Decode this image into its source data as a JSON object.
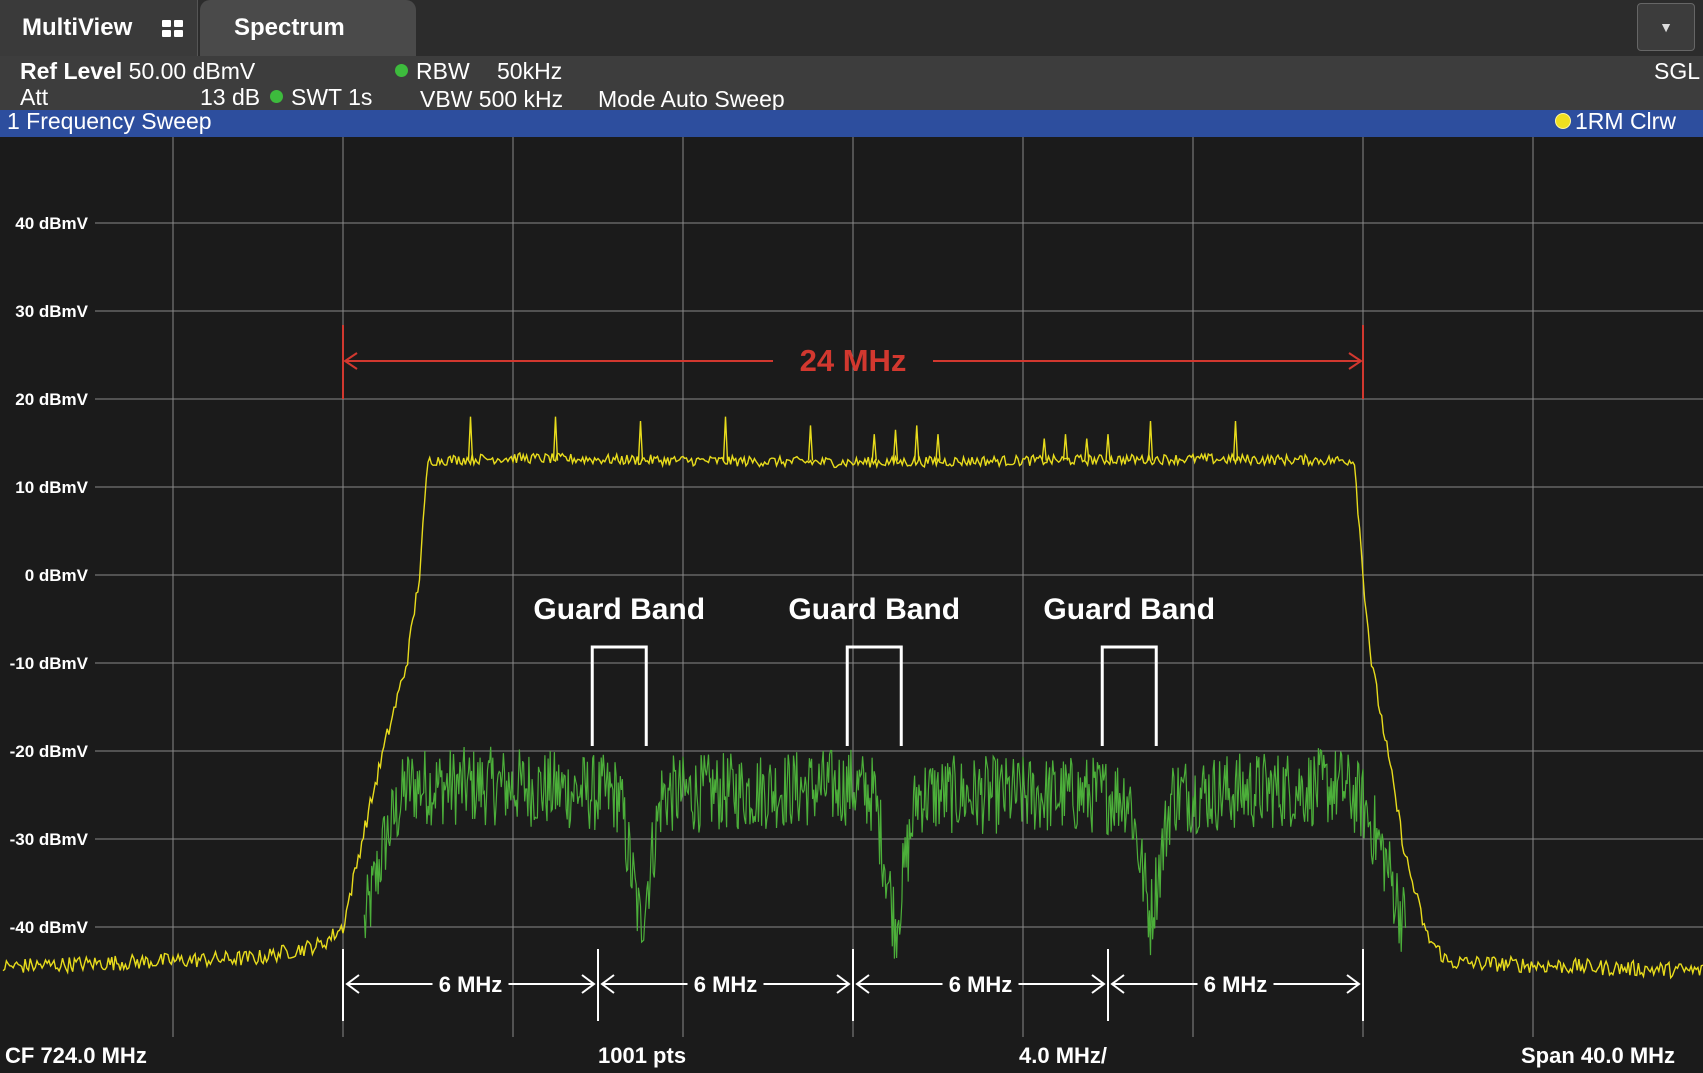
{
  "tabs": {
    "multiview": "MultiView",
    "spectrum": "Spectrum"
  },
  "info": {
    "ref_level_label": "Ref Level",
    "ref_level_value": "50.00 dBmV",
    "att_label": "Att",
    "att_value": "13 dB",
    "swt": "SWT 1s",
    "rbw_label": "RBW",
    "rbw_value": "50kHz",
    "vbw": "VBW 500 kHz",
    "mode": "Mode Auto Sweep",
    "sgl": "SGL"
  },
  "window": {
    "title": "1 Frequency Sweep",
    "trace_label": "1RM Clrw"
  },
  "footer": {
    "cf": "CF 724.0 MHz",
    "pts": "1001 pts",
    "div": "4.0 MHz/",
    "span": "Span 40.0 MHz"
  },
  "colors": {
    "trace_yellow": "#e8dc1c",
    "trace_green": "#4caf3a",
    "annotation_red": "#d2382f",
    "title_bar_blue": "#2d4e9e"
  },
  "chart_data": {
    "type": "line",
    "x_unit": "MHz",
    "x_range": [
      704,
      744
    ],
    "y_unit": "dBmV",
    "ylim": [
      -47,
      50
    ],
    "y_tick_labels": [
      "40 dBmV",
      "30 dBmV",
      "20 dBmV",
      "10 dBmV",
      "0 dBmV",
      "-10 dBmV",
      "-20 dBmV",
      "-30 dBmV",
      "-40 dBmV"
    ],
    "y_ticks": [
      40,
      30,
      20,
      10,
      0,
      -10,
      -20,
      -30,
      -40
    ],
    "grid": true,
    "series": [
      {
        "color": "#e8dc1c",
        "points": [
          [
            704,
            -44.5
          ],
          [
            710,
            -43.5
          ],
          [
            711.5,
            -42
          ],
          [
            712,
            -40
          ],
          [
            712.5,
            -29
          ],
          [
            713,
            -19
          ],
          [
            713.5,
            -10
          ],
          [
            713.8,
            0
          ],
          [
            714,
            13
          ],
          [
            716,
            13.3
          ],
          [
            720,
            13
          ],
          [
            724,
            12.8
          ],
          [
            728,
            13
          ],
          [
            732,
            13.2
          ],
          [
            735.8,
            13
          ],
          [
            736,
            0
          ],
          [
            736.2,
            -10
          ],
          [
            736.5,
            -18
          ],
          [
            737,
            -32
          ],
          [
            737.5,
            -41
          ],
          [
            738,
            -44
          ],
          [
            744,
            -45
          ]
        ],
        "peaks": [
          [
            715,
            18
          ],
          [
            717,
            18
          ],
          [
            719,
            17.5
          ],
          [
            721,
            18
          ],
          [
            723,
            17
          ],
          [
            724.5,
            16
          ],
          [
            725,
            16.5
          ],
          [
            725.5,
            17
          ],
          [
            726,
            16
          ],
          [
            728.5,
            15.5
          ],
          [
            729,
            16
          ],
          [
            729.5,
            15.5
          ],
          [
            730,
            16
          ],
          [
            731,
            17.5
          ],
          [
            733,
            17.5
          ]
        ]
      },
      {
        "color": "#4caf3a",
        "points": [
          [
            712.5,
            -40
          ],
          [
            713,
            -30
          ],
          [
            713.5,
            -24
          ],
          [
            716,
            -24
          ],
          [
            718.5,
            -25
          ],
          [
            719,
            -40
          ],
          [
            719.5,
            -25
          ],
          [
            724,
            -24
          ],
          [
            724.5,
            -25
          ],
          [
            725,
            -40
          ],
          [
            725.5,
            -25
          ],
          [
            730.5,
            -25
          ],
          [
            731,
            -39
          ],
          [
            731.5,
            -25
          ],
          [
            735.5,
            -24
          ],
          [
            736,
            -26
          ],
          [
            736.5,
            -32
          ],
          [
            737,
            -40
          ]
        ]
      }
    ],
    "annotations": [
      {
        "text": "24 MHz",
        "from": 712,
        "to": 736
      },
      {
        "text": "Guard Band",
        "at": 718.5
      },
      {
        "text": "Guard Band",
        "at": 724.5
      },
      {
        "text": "Guard Band",
        "at": 730.5
      },
      {
        "text": "6 MHz",
        "from": 712,
        "to": 718
      },
      {
        "text": "6 MHz",
        "from": 718,
        "to": 724
      },
      {
        "text": "6 MHz",
        "from": 724,
        "to": 730
      },
      {
        "text": "6 MHz",
        "from": 730,
        "to": 736
      }
    ]
  }
}
